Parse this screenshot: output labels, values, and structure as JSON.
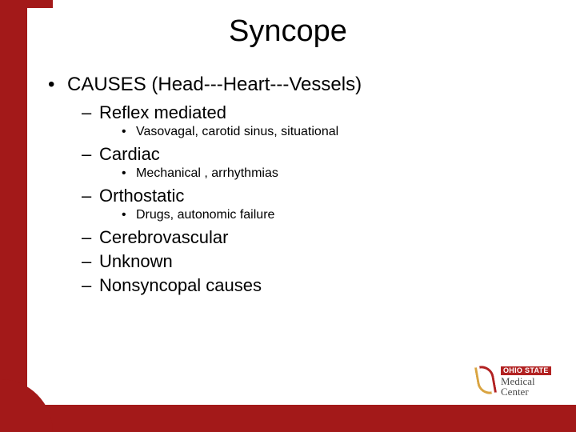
{
  "colors": {
    "brand_red": "#a31919",
    "swoosh_gold": "#d9a441",
    "swoosh_red": "#b22222",
    "text": "#000000",
    "background": "#ffffff",
    "logo_gray": "#4a4a4a"
  },
  "title": "Syncope",
  "bullets": {
    "l1": "CAUSES  (Head---Heart---Vessels)",
    "l2_1": "Reflex mediated",
    "l3_1": "Vasovagal, carotid sinus, situational",
    "l2_2": "Cardiac",
    "l3_2": "Mechanical , arrhythmias",
    "l2_3": "Orthostatic",
    "l3_3": "Drugs, autonomic failure",
    "l2_4": "Cerebrovascular",
    "l2_5": "Unknown",
    "l2_6": "Nonsyncopal causes"
  },
  "logo": {
    "ohio": "OHIO",
    "state": "STATE",
    "medical": "Medical",
    "center": "Center"
  },
  "layout": {
    "slide_w": 720,
    "slide_h": 540,
    "title_fontsize": 38,
    "lvl1_fontsize": 24,
    "lvl2_fontsize": 22,
    "lvl3_fontsize": 16
  }
}
